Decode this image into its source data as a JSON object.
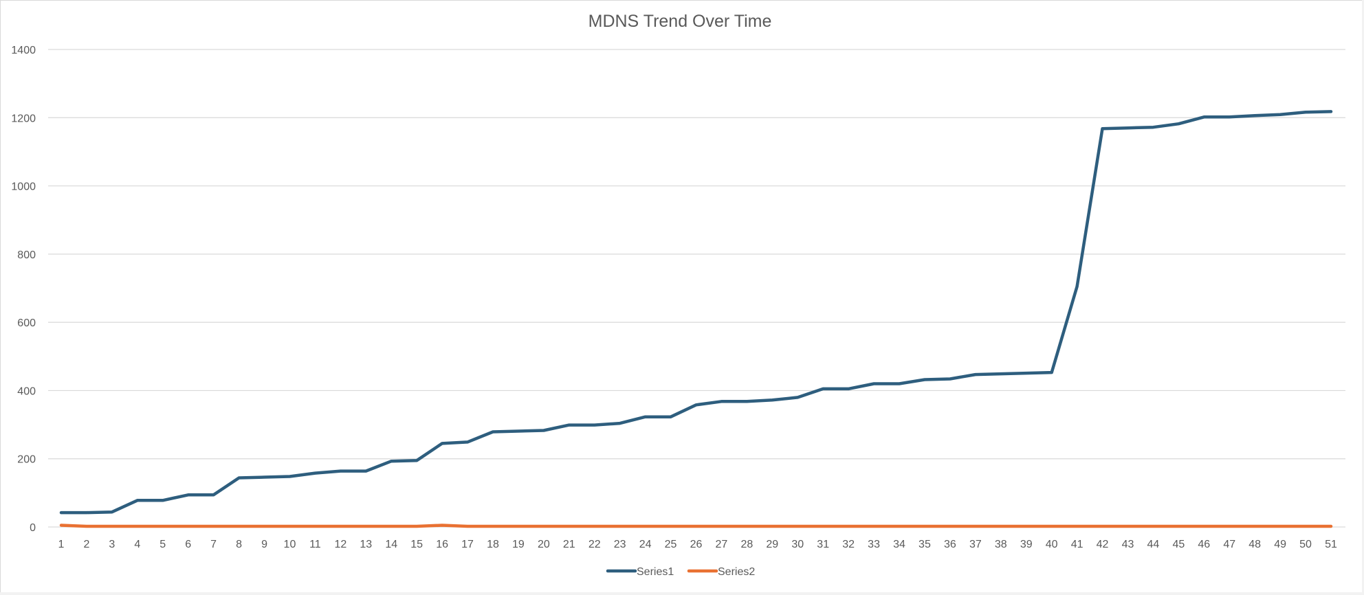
{
  "chart_data": {
    "type": "line",
    "title": "MDNS Trend Over Time",
    "xlabel": "",
    "ylabel": "",
    "x": [
      1,
      2,
      3,
      4,
      5,
      6,
      7,
      8,
      9,
      10,
      11,
      12,
      13,
      14,
      15,
      16,
      17,
      18,
      19,
      20,
      21,
      22,
      23,
      24,
      25,
      26,
      27,
      28,
      29,
      30,
      31,
      32,
      33,
      34,
      35,
      36,
      37,
      38,
      39,
      40,
      41,
      42,
      43,
      44,
      45,
      46,
      47,
      48,
      49,
      50,
      51
    ],
    "ylim": [
      0,
      1400
    ],
    "yticks": [
      0,
      200,
      400,
      600,
      800,
      1000,
      1200,
      1400
    ],
    "grid": true,
    "legend_position": "bottom",
    "series": [
      {
        "name": "Series1",
        "color": "#2e5e7e",
        "values": [
          42,
          42,
          44,
          78,
          78,
          94,
          94,
          144,
          146,
          148,
          158,
          164,
          164,
          193,
          195,
          245,
          249,
          279,
          281,
          283,
          299,
          299,
          304,
          323,
          323,
          358,
          368,
          368,
          372,
          380,
          405,
          405,
          420,
          420,
          432,
          434,
          447,
          449,
          451,
          453,
          705,
          1168,
          1170,
          1172,
          1182,
          1202,
          1202,
          1206,
          1209,
          1216,
          1218
        ]
      },
      {
        "name": "Series2",
        "color": "#e97132",
        "values": [
          5,
          2,
          2,
          2,
          2,
          2,
          2,
          2,
          2,
          2,
          2,
          2,
          2,
          2,
          2,
          5,
          2,
          2,
          2,
          2,
          2,
          2,
          2,
          2,
          2,
          2,
          2,
          2,
          2,
          2,
          2,
          2,
          2,
          2,
          2,
          2,
          2,
          2,
          2,
          2,
          2,
          2,
          2,
          2,
          2,
          2,
          2,
          2,
          2,
          2,
          2
        ]
      }
    ]
  }
}
